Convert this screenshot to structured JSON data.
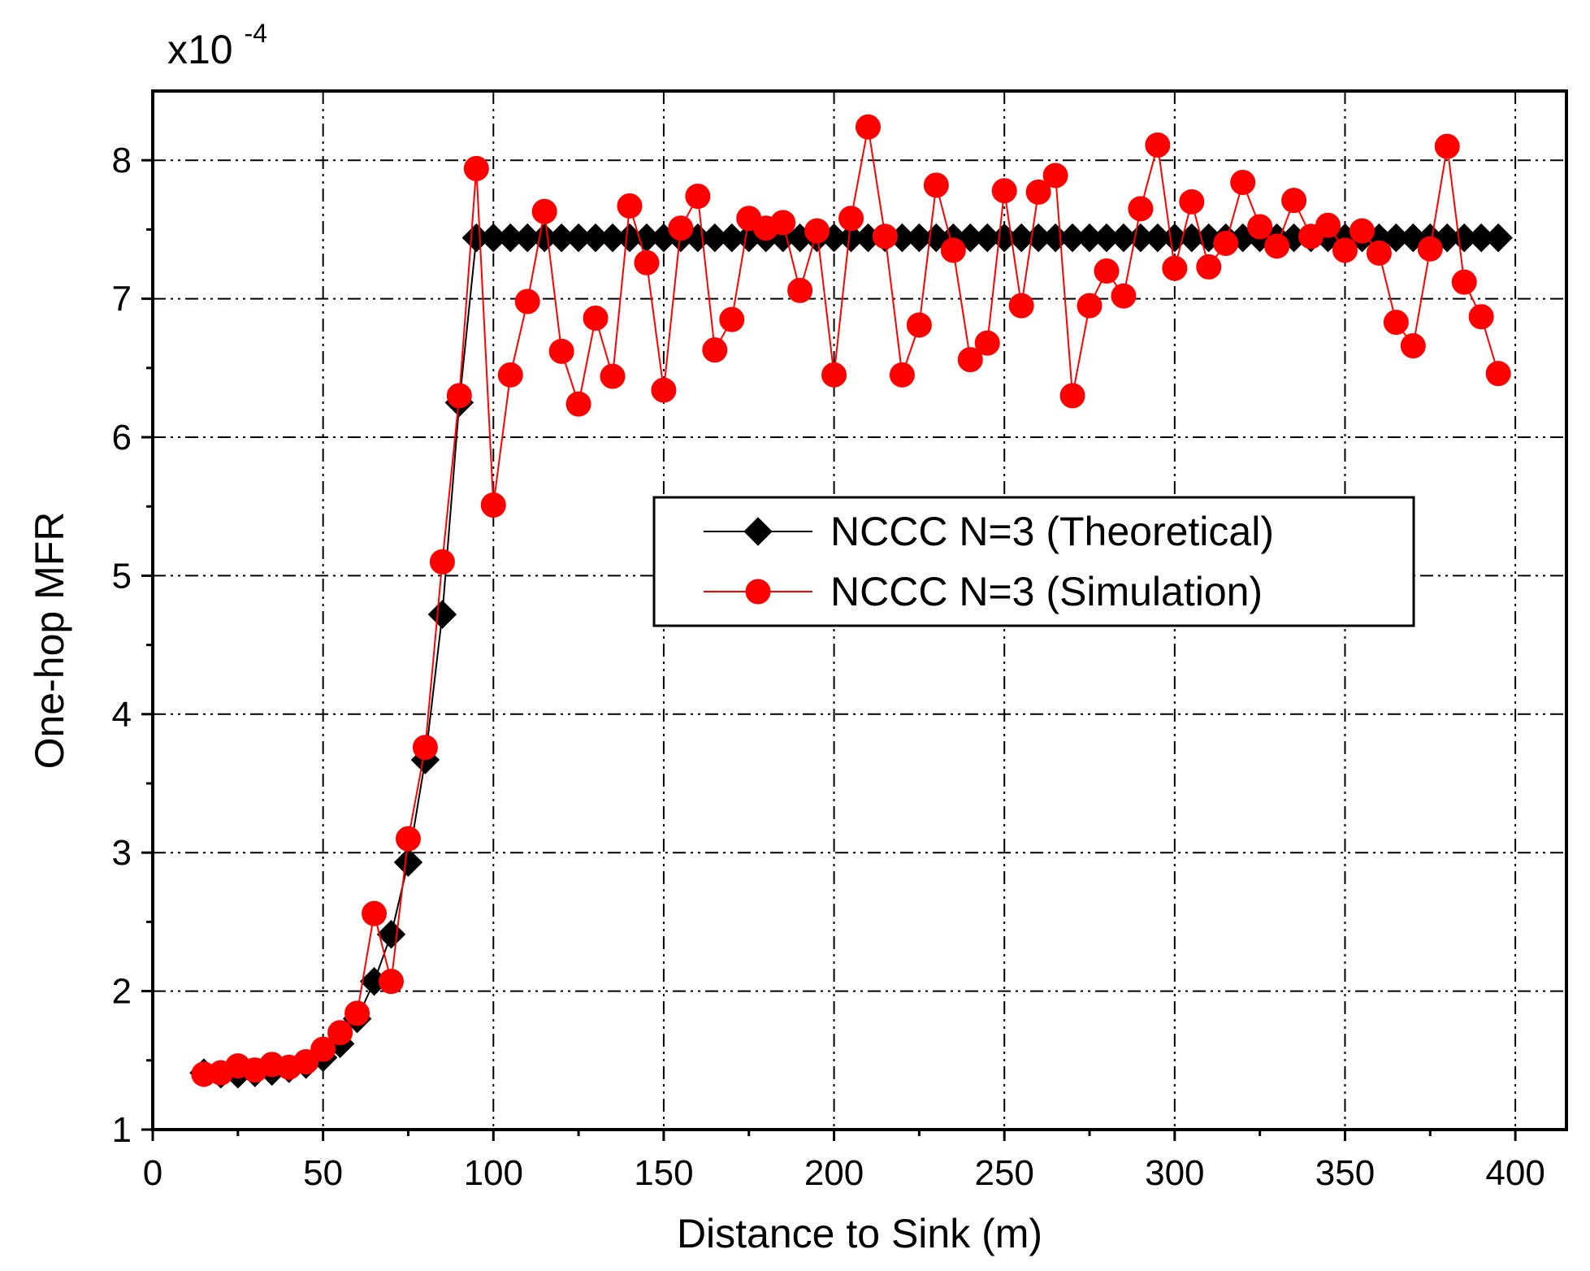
{
  "chart_data": {
    "type": "line",
    "title": "",
    "xlabel": "Distance to Sink (m)",
    "ylabel": "One-hop MFR",
    "y_scale_label": {
      "base": "x10",
      "exponent": "-4"
    },
    "xlim": [
      0,
      415
    ],
    "ylim": [
      1,
      8.5
    ],
    "xticks": [
      0,
      50,
      100,
      150,
      200,
      250,
      300,
      350,
      400
    ],
    "yticks": [
      1,
      2,
      3,
      4,
      5,
      6,
      7,
      8
    ],
    "grid": true,
    "legend_position": "center-right",
    "colors": {
      "theoretical": "#000000",
      "simulation": "#ff0000"
    },
    "series": [
      {
        "name": "NCCC N=3 (Theoretical)",
        "marker": "diamond",
        "x": [
          15,
          20,
          25,
          30,
          35,
          40,
          45,
          50,
          55,
          60,
          65,
          70,
          75,
          80,
          85,
          90,
          95,
          100,
          105,
          110,
          115,
          120,
          125,
          130,
          135,
          140,
          145,
          150,
          155,
          160,
          165,
          170,
          175,
          180,
          185,
          190,
          195,
          200,
          205,
          210,
          215,
          220,
          225,
          230,
          235,
          240,
          245,
          250,
          255,
          260,
          265,
          270,
          275,
          280,
          285,
          290,
          295,
          300,
          305,
          310,
          315,
          320,
          325,
          330,
          335,
          340,
          345,
          350,
          355,
          360,
          365,
          370,
          375,
          380,
          385,
          390,
          395
        ],
        "values": [
          1.41,
          1.4,
          1.4,
          1.41,
          1.42,
          1.44,
          1.47,
          1.52,
          1.62,
          1.8,
          2.07,
          2.41,
          2.93,
          3.67,
          4.72,
          6.25,
          7.44,
          7.44,
          7.44,
          7.44,
          7.44,
          7.44,
          7.44,
          7.44,
          7.44,
          7.44,
          7.44,
          7.44,
          7.44,
          7.44,
          7.44,
          7.44,
          7.44,
          7.44,
          7.44,
          7.44,
          7.44,
          7.44,
          7.44,
          7.44,
          7.44,
          7.44,
          7.44,
          7.44,
          7.44,
          7.44,
          7.44,
          7.44,
          7.44,
          7.44,
          7.44,
          7.44,
          7.44,
          7.44,
          7.44,
          7.44,
          7.44,
          7.44,
          7.44,
          7.44,
          7.44,
          7.44,
          7.44,
          7.44,
          7.44,
          7.44,
          7.44,
          7.44,
          7.44,
          7.44,
          7.44,
          7.44,
          7.44,
          7.44,
          7.44,
          7.44,
          7.44
        ]
      },
      {
        "name": "NCCC N=3 (Simulation)",
        "marker": "circle",
        "x": [
          15,
          20,
          25,
          30,
          35,
          40,
          45,
          50,
          55,
          60,
          65,
          70,
          75,
          80,
          85,
          90,
          95,
          100,
          105,
          110,
          115,
          120,
          125,
          130,
          135,
          140,
          145,
          150,
          155,
          160,
          165,
          170,
          175,
          180,
          185,
          190,
          195,
          200,
          205,
          210,
          215,
          220,
          225,
          230,
          235,
          240,
          245,
          250,
          255,
          260,
          265,
          270,
          275,
          280,
          285,
          290,
          295,
          300,
          305,
          310,
          315,
          320,
          325,
          330,
          335,
          340,
          345,
          350,
          355,
          360,
          365,
          370,
          375,
          380,
          385,
          390,
          395
        ],
        "values": [
          1.4,
          1.41,
          1.46,
          1.43,
          1.47,
          1.45,
          1.49,
          1.58,
          1.7,
          1.84,
          2.56,
          2.07,
          3.1,
          3.76,
          5.1,
          6.3,
          7.94,
          5.51,
          6.45,
          6.98,
          7.63,
          6.62,
          6.24,
          6.86,
          6.44,
          7.67,
          7.26,
          6.34,
          7.51,
          7.74,
          6.63,
          6.85,
          7.58,
          7.51,
          7.55,
          7.06,
          7.49,
          6.45,
          7.58,
          8.24,
          7.45,
          6.45,
          6.81,
          7.82,
          7.35,
          6.56,
          6.68,
          7.78,
          6.95,
          7.77,
          7.89,
          6.3,
          6.95,
          7.2,
          7.02,
          7.65,
          8.11,
          7.22,
          7.7,
          7.23,
          7.4,
          7.84,
          7.52,
          7.38,
          7.71,
          7.45,
          7.53,
          7.35,
          7.49,
          7.33,
          6.83,
          6.66,
          7.36,
          8.1,
          7.12,
          6.87,
          6.46
        ]
      }
    ]
  }
}
